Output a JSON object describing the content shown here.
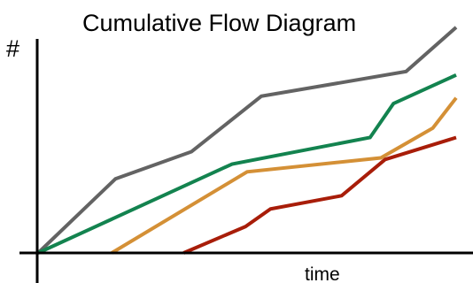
{
  "chart_data": {
    "type": "line",
    "title": "Cumulative Flow Diagram",
    "xlabel": "time",
    "ylabel": "#",
    "xlim": [
      0,
      100
    ],
    "ylim": [
      0,
      100
    ],
    "grid": false,
    "legend": "none",
    "axis_ticks": false,
    "series": [
      {
        "color": "#636363",
        "x": [
          0,
          18.5,
          36.7,
          53.4,
          88.0,
          100
        ],
        "y": [
          0,
          32.3,
          44.2,
          68.4,
          79.2,
          98.5
        ]
      },
      {
        "color": "#13834f",
        "x": [
          0,
          46.4,
          79.4,
          85.0,
          100
        ],
        "y": [
          0,
          38.8,
          50.4,
          65.2,
          77.7
        ]
      },
      {
        "color": "#d49036",
        "x": [
          17.6,
          50.0,
          82.0,
          94.4,
          100
        ],
        "y": [
          0,
          35.4,
          41.5,
          54.5,
          67.7
        ]
      },
      {
        "color": "#a81d09",
        "x": [
          34.8,
          49.6,
          55.6,
          72.6,
          83.0,
          100
        ],
        "y": [
          0,
          11.5,
          19.2,
          25.0,
          40.8,
          50.4
        ]
      }
    ]
  }
}
